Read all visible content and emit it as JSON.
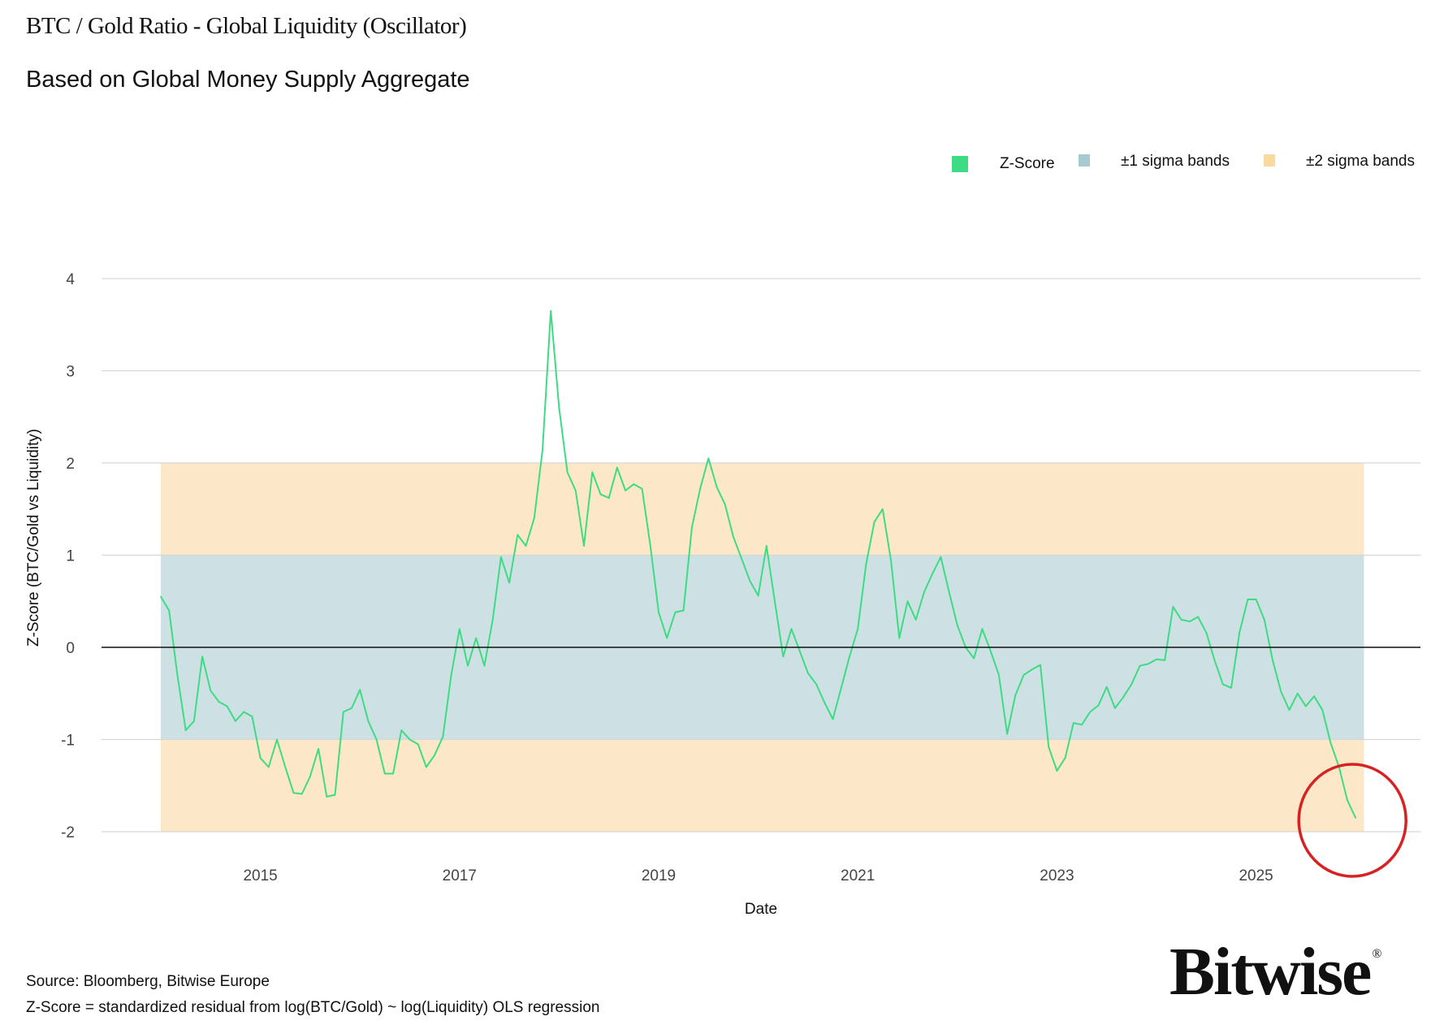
{
  "title": "BTC / Gold Ratio - Global Liquidity (Oscillator)",
  "subtitle": "Based on Global Money Supply Aggregate",
  "source": "Source: Bloomberg, Bitwise Europe",
  "footnote": "Z-Score = standardized residual from log(BTC/Gold) ~ log(Liquidity) OLS regression",
  "logo_text": "Bitwise",
  "logo_mark": "®",
  "colors": {
    "zscore": "#3ddc84",
    "sigma1": "#cde0e3",
    "sigma2": "#fce8c8",
    "zero_line": "#111111",
    "highlight_circle": "#d62222"
  },
  "chart_data": {
    "type": "line",
    "xlabel": "Date",
    "ylabel": "Z-Score (BTC/Gold vs Liquidity)",
    "ylim": [
      -2,
      4
    ],
    "yticks": [
      "4",
      "3",
      "2",
      "1",
      "0",
      "-1",
      "-2"
    ],
    "ytick_values": [
      4,
      3,
      2,
      1,
      0,
      -1,
      -2
    ],
    "xticks": [
      "2015",
      "2017",
      "2019",
      "2021",
      "2023",
      "2025"
    ],
    "grid": true,
    "legend_placement": "top-right",
    "legend": [
      {
        "name": "Z-Score",
        "color": "#3ddc84"
      },
      {
        "name": "±1 sigma bands",
        "color": "#a9c9d0"
      },
      {
        "name": "±2 sigma bands",
        "color": "#f8d9a0"
      }
    ],
    "bands": [
      {
        "name": "±2 sigma bands",
        "from": -2,
        "to": 2,
        "start": "2014-01",
        "end": "2026-01"
      },
      {
        "name": "±1 sigma bands",
        "from": -1,
        "to": 1,
        "start": "2014-01",
        "end": "2026-01"
      }
    ],
    "annotation": {
      "type": "circle",
      "around": "2026-01",
      "value": -1.85
    },
    "series": [
      {
        "name": "Z-Score",
        "dates": [
          "2014-01",
          "2014-02",
          "2014-03",
          "2014-04",
          "2014-05",
          "2014-06",
          "2014-07",
          "2014-08",
          "2014-09",
          "2014-10",
          "2014-11",
          "2014-12",
          "2015-01",
          "2015-02",
          "2015-03",
          "2015-04",
          "2015-05",
          "2015-06",
          "2015-07",
          "2015-08",
          "2015-09",
          "2015-10",
          "2015-11",
          "2015-12",
          "2016-01",
          "2016-02",
          "2016-03",
          "2016-04",
          "2016-05",
          "2016-06",
          "2016-07",
          "2016-08",
          "2016-09",
          "2016-10",
          "2016-11",
          "2016-12",
          "2017-01",
          "2017-02",
          "2017-03",
          "2017-04",
          "2017-05",
          "2017-06",
          "2017-07",
          "2017-08",
          "2017-09",
          "2017-10",
          "2017-11",
          "2017-12",
          "2018-01",
          "2018-02",
          "2018-03",
          "2018-04",
          "2018-05",
          "2018-06",
          "2018-07",
          "2018-08",
          "2018-09",
          "2018-10",
          "2018-11",
          "2018-12",
          "2019-01",
          "2019-02",
          "2019-03",
          "2019-04",
          "2019-05",
          "2019-06",
          "2019-07",
          "2019-08",
          "2019-09",
          "2019-10",
          "2019-11",
          "2019-12",
          "2020-01",
          "2020-02",
          "2020-03",
          "2020-04",
          "2020-05",
          "2020-06",
          "2020-07",
          "2020-08",
          "2020-09",
          "2020-10",
          "2020-11",
          "2020-12",
          "2021-01",
          "2021-02",
          "2021-03",
          "2021-04",
          "2021-05",
          "2021-06",
          "2021-07",
          "2021-08",
          "2021-09",
          "2021-10",
          "2021-11",
          "2021-12",
          "2022-01",
          "2022-02",
          "2022-03",
          "2022-04",
          "2022-05",
          "2022-06",
          "2022-07",
          "2022-08",
          "2022-09",
          "2022-10",
          "2022-11",
          "2022-12",
          "2023-01",
          "2023-02",
          "2023-03",
          "2023-04",
          "2023-05",
          "2023-06",
          "2023-07",
          "2023-08",
          "2023-09",
          "2023-10",
          "2023-11",
          "2023-12",
          "2024-01",
          "2024-02",
          "2024-03",
          "2024-04",
          "2024-05",
          "2024-06",
          "2024-07",
          "2024-08",
          "2024-09",
          "2024-10",
          "2024-11",
          "2024-12",
          "2025-01",
          "2025-02",
          "2025-03",
          "2025-04",
          "2025-05",
          "2025-06",
          "2025-07",
          "2025-08",
          "2025-09",
          "2025-10",
          "2025-11",
          "2025-12",
          "2026-01"
        ],
        "values": [
          0.55,
          0.4,
          -0.3,
          -0.9,
          -0.8,
          -0.1,
          -0.47,
          -0.59,
          -0.64,
          -0.8,
          -0.7,
          -0.75,
          -1.2,
          -1.3,
          -1.0,
          -1.3,
          -1.58,
          -1.59,
          -1.4,
          -1.1,
          -1.62,
          -1.6,
          -0.7,
          -0.66,
          -0.46,
          -0.8,
          -1.0,
          -1.37,
          -1.37,
          -0.9,
          -1.0,
          -1.05,
          -1.3,
          -1.17,
          -0.97,
          -0.3,
          0.2,
          -0.2,
          0.1,
          -0.2,
          0.3,
          0.98,
          0.7,
          1.22,
          1.1,
          1.4,
          2.14,
          3.65,
          2.6,
          1.9,
          1.7,
          1.1,
          1.9,
          1.66,
          1.62,
          1.95,
          1.7,
          1.77,
          1.72,
          1.1,
          0.38,
          0.1,
          0.38,
          0.4,
          1.3,
          1.72,
          2.05,
          1.74,
          1.55,
          1.2,
          0.96,
          0.72,
          0.56,
          1.1,
          0.5,
          -0.1,
          0.2,
          -0.04,
          -0.28,
          -0.4,
          -0.6,
          -0.78,
          -0.44,
          -0.1,
          0.2,
          0.9,
          1.36,
          1.5,
          0.94,
          0.1,
          0.5,
          0.3,
          0.6,
          0.8,
          0.98,
          0.6,
          0.24,
          0.0,
          -0.12,
          0.2,
          -0.04,
          -0.3,
          -0.94,
          -0.52,
          -0.3,
          -0.24,
          -0.19,
          -1.08,
          -1.34,
          -1.2,
          -0.82,
          -0.84,
          -0.7,
          -0.63,
          -0.43,
          -0.66,
          -0.54,
          -0.4,
          -0.2,
          -0.18,
          -0.13,
          -0.14,
          0.44,
          0.3,
          0.28,
          0.33,
          0.16,
          -0.14,
          -0.4,
          -0.44,
          0.16,
          0.52,
          0.52,
          0.3,
          -0.14,
          -0.48,
          -0.68,
          -0.5,
          -0.64,
          -0.53,
          -0.68,
          -1.04,
          -1.3,
          -1.66,
          -1.85
        ]
      }
    ]
  }
}
